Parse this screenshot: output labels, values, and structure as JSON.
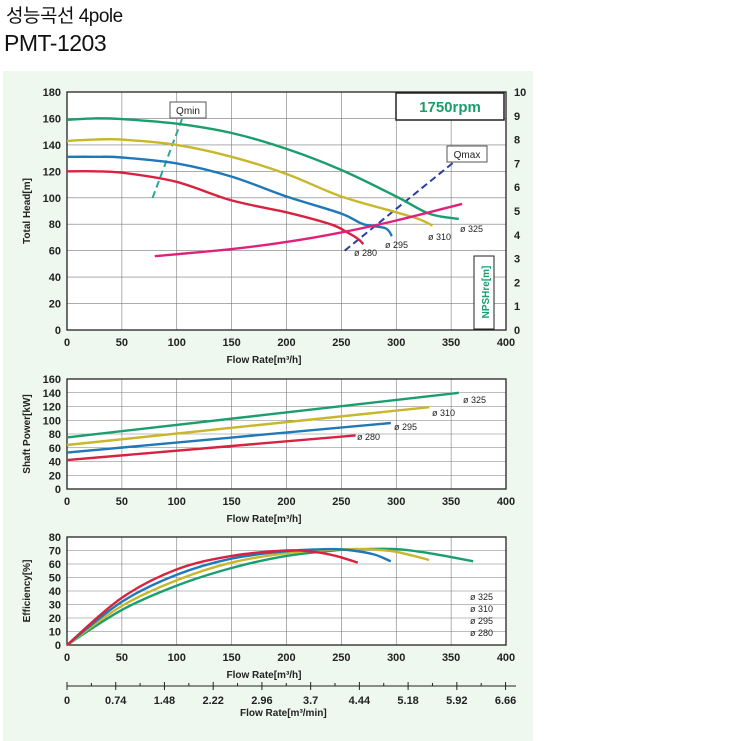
{
  "header": {
    "title": "성능곡선 4pole",
    "model": "PMT-1203"
  },
  "colors": {
    "d325": "#1a9e6e",
    "d310": "#c8b62c",
    "d295": "#1f78b8",
    "d280": "#d6233f",
    "npsh": "#e0207a",
    "qmin": "#2aa79a",
    "qmax": "#2b3fa0",
    "panel_bg": "#eef8ef",
    "grid": "#7a7a7a"
  },
  "chart_data": [
    {
      "type": "line",
      "title": "",
      "badge": "1750rpm",
      "xlabel": "Flow Rate[m³/h]",
      "ylabel": "Total Head[m]",
      "y2label": "NPSHre[m]",
      "xlim": [
        0,
        400
      ],
      "ylim": [
        0,
        180
      ],
      "y2lim": [
        0,
        10
      ],
      "xticks": [
        "0",
        "50",
        "100",
        "150",
        "200",
        "250",
        "300",
        "350",
        "400"
      ],
      "yticks": [
        "0",
        "20",
        "40",
        "60",
        "80",
        "100",
        "120",
        "140",
        "160",
        "180"
      ],
      "y2ticks": [
        "0",
        "1",
        "2",
        "3",
        "4",
        "5",
        "6",
        "7",
        "8",
        "9",
        "10"
      ],
      "grid": true,
      "series": [
        {
          "name": "ø 325",
          "x": [
            0,
            25,
            50,
            100,
            150,
            200,
            250,
            300,
            330,
            357
          ],
          "values": [
            159,
            160,
            159.5,
            156,
            149,
            137,
            121,
            101,
            88,
            84
          ]
        },
        {
          "name": "ø 310",
          "x": [
            0,
            25,
            50,
            100,
            150,
            200,
            250,
            300,
            320,
            333
          ],
          "values": [
            143,
            144,
            144,
            140,
            131,
            118,
            101,
            89,
            84,
            79
          ]
        },
        {
          "name": "ø 295",
          "x": [
            0,
            25,
            50,
            100,
            150,
            200,
            250,
            270,
            290,
            296
          ],
          "values": [
            131,
            131,
            130.5,
            126,
            116,
            101,
            88,
            80,
            77,
            71
          ]
        },
        {
          "name": "ø 280",
          "x": [
            0,
            25,
            50,
            100,
            150,
            200,
            240,
            255,
            265,
            270
          ],
          "values": [
            120,
            120,
            119,
            112,
            98,
            89,
            80,
            74,
            69,
            65
          ]
        },
        {
          "name": "NPSHre",
          "axis": "y2",
          "x": [
            80,
            150,
            200,
            250,
            300,
            360
          ],
          "values": [
            3.1,
            3.4,
            3.7,
            4.1,
            4.6,
            5.3
          ]
        }
      ],
      "annotations": [
        {
          "label": "Qmin",
          "x": [
            78,
            105
          ],
          "values": [
            100,
            160
          ]
        },
        {
          "label": "Qmax",
          "x": [
            253,
            357
          ],
          "values": [
            60,
            130
          ]
        }
      ]
    },
    {
      "type": "line",
      "title": "",
      "xlabel": "Flow Rate[m³/h]",
      "ylabel": "Shaft Power[kW]",
      "xlim": [
        0,
        400
      ],
      "ylim": [
        0,
        160
      ],
      "xticks": [
        "0",
        "50",
        "100",
        "150",
        "200",
        "250",
        "300",
        "350",
        "400"
      ],
      "yticks": [
        "0",
        "20",
        "40",
        "60",
        "80",
        "100",
        "120",
        "140",
        "160"
      ],
      "grid": true,
      "series": [
        {
          "name": "ø 325",
          "x": [
            0,
            357
          ],
          "values": [
            75,
            140
          ]
        },
        {
          "name": "ø 310",
          "x": [
            0,
            330
          ],
          "values": [
            64,
            119
          ]
        },
        {
          "name": "ø 295",
          "x": [
            0,
            295
          ],
          "values": [
            53,
            96
          ]
        },
        {
          "name": "ø 280",
          "x": [
            0,
            263
          ],
          "values": [
            42,
            78
          ]
        }
      ]
    },
    {
      "type": "line",
      "title": "",
      "xlabel": "Flow Rate[m³/h]",
      "x2label": "Flow Rate[m³/min]",
      "ylabel": "Efficiency[%]",
      "xlim": [
        0,
        400
      ],
      "ylim": [
        0,
        80
      ],
      "xticks": [
        "0",
        "50",
        "100",
        "150",
        "200",
        "250",
        "300",
        "350",
        "400"
      ],
      "x2ticks": [
        "0",
        "0.74",
        "1.48",
        "2.22",
        "2.96",
        "3.7",
        "4.44",
        "5.18",
        "5.92",
        "6.66"
      ],
      "yticks": [
        "0",
        "10",
        "20",
        "30",
        "40",
        "50",
        "60",
        "70",
        "80"
      ],
      "grid": true,
      "legend": [
        "ø 325",
        "ø 310",
        "ø 295",
        "ø 280"
      ],
      "series": [
        {
          "name": "ø 325",
          "x": [
            0,
            50,
            100,
            150,
            200,
            250,
            270,
            300,
            330,
            370
          ],
          "values": [
            0,
            26,
            44,
            57,
            66,
            70.5,
            71,
            71,
            68,
            62
          ]
        },
        {
          "name": "ø 310",
          "x": [
            0,
            50,
            100,
            150,
            200,
            240,
            270,
            300,
            330
          ],
          "values": [
            0,
            29,
            48,
            61,
            68,
            70.5,
            71,
            69,
            63
          ]
        },
        {
          "name": "ø 295",
          "x": [
            0,
            50,
            100,
            150,
            200,
            240,
            260,
            280,
            295
          ],
          "values": [
            0,
            32,
            52,
            64,
            69.5,
            71,
            70,
            67,
            62
          ]
        },
        {
          "name": "ø 280",
          "x": [
            0,
            50,
            100,
            150,
            200,
            225,
            245,
            265
          ],
          "values": [
            0,
            35,
            56,
            66,
            70,
            69,
            66,
            61
          ]
        }
      ]
    }
  ]
}
